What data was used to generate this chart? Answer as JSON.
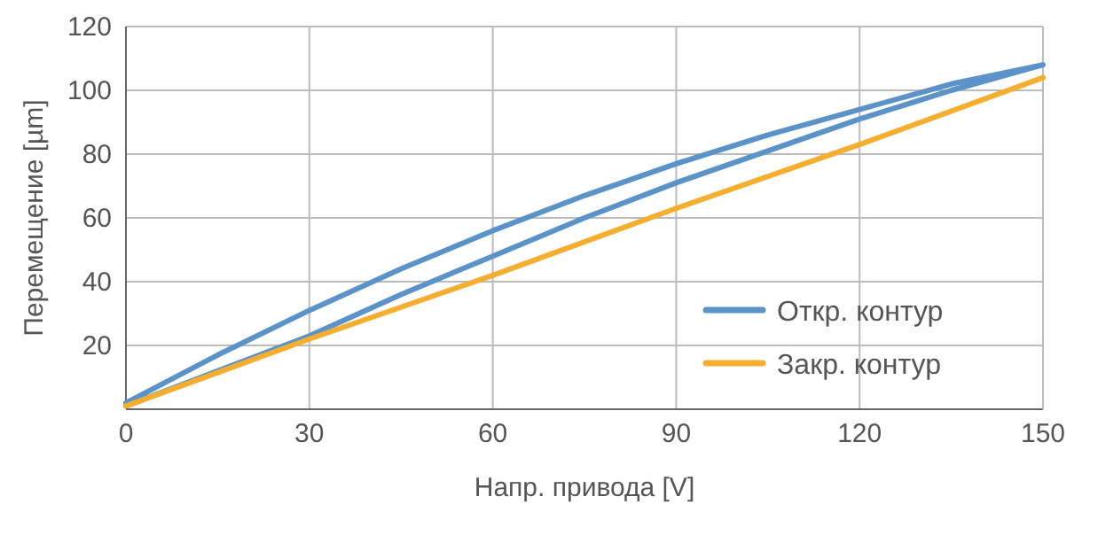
{
  "chart_data": {
    "type": "line",
    "xlabel": "Напр. привода [V]",
    "ylabel": "Перемещение [µm]",
    "xlim": [
      0,
      150
    ],
    "xticks": [
      0,
      30,
      60,
      90,
      120,
      150
    ],
    "ylim": [
      0,
      120
    ],
    "yticks": [
      20,
      40,
      60,
      80,
      100,
      120
    ],
    "grid": true,
    "legend": "bottom right",
    "line_style": "solid",
    "marker": "none",
    "series": [
      {
        "name": "Откр. контур",
        "color": "#5b93c9",
        "x": [
          0,
          15,
          30,
          45,
          60,
          75,
          90,
          105,
          120,
          135,
          150,
          135,
          120,
          105,
          90,
          75,
          60,
          45,
          30,
          15,
          0
        ],
        "values": [
          1,
          12,
          23,
          36,
          48,
          60,
          71,
          81,
          91,
          100,
          108,
          102,
          94,
          86,
          77,
          67,
          56,
          44,
          31,
          17,
          2
        ]
      },
      {
        "name": "Закр. контур",
        "color": "#f5ae2f",
        "x": [
          0,
          30,
          60,
          90,
          120,
          150
        ],
        "values": [
          1,
          22,
          42,
          63,
          83,
          104
        ]
      }
    ]
  }
}
